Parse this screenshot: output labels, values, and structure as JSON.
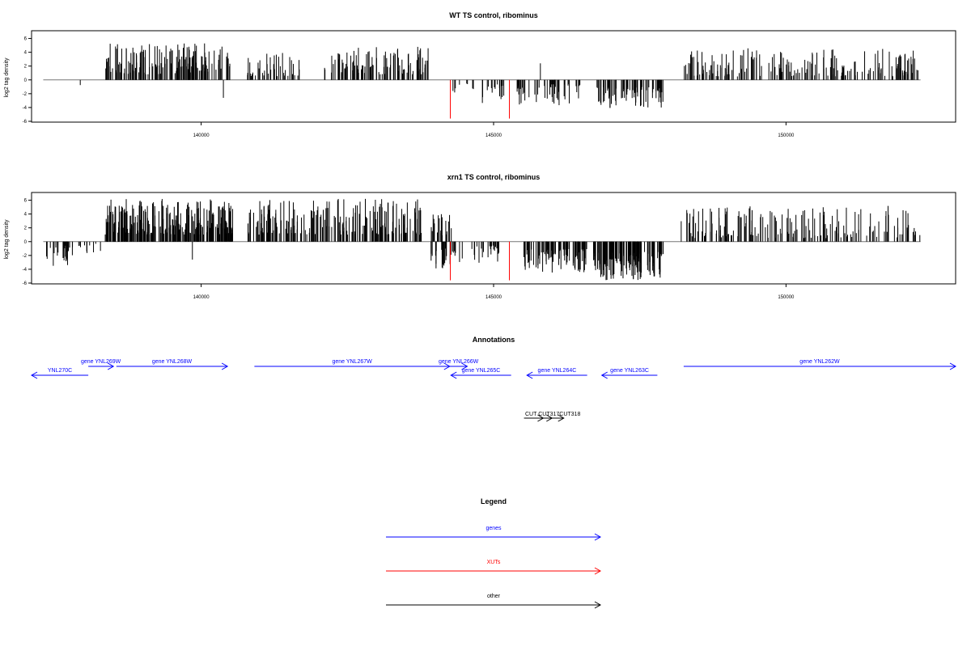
{
  "chart_data": [
    {
      "type": "bar",
      "title": "WT TS control, ribominus",
      "ylabel": "log2 tag density",
      "xlabel": "",
      "xlim": [
        137100,
        152900
      ],
      "ylim": [
        -6,
        6.3
      ],
      "x_ticks": [
        140000,
        145000,
        150000
      ],
      "x_tick_labels": [
        "140000",
        "145000",
        "150000"
      ],
      "y_ticks": [
        6,
        4,
        2,
        0,
        -2,
        -4,
        -6
      ],
      "y_tick_labels": [
        "6",
        "4",
        "2",
        "0",
        "-2",
        "-4",
        "-6"
      ],
      "colors": {
        "bars": "#000000",
        "highlight": "#ff0000"
      },
      "segments": [
        {
          "start": 137900,
          "end": 137950,
          "count": 1,
          "sign": -1,
          "min": 0.7,
          "max": 1.0
        },
        {
          "start": 138350,
          "end": 140500,
          "count": 170,
          "sign": 1,
          "min": 0.8,
          "max": 5.3
        },
        {
          "start": 140780,
          "end": 141750,
          "count": 40,
          "sign": 1,
          "min": 0.5,
          "max": 4.0
        },
        {
          "start": 142100,
          "end": 143900,
          "count": 110,
          "sign": 1,
          "min": 0.8,
          "max": 4.8
        },
        {
          "start": 144300,
          "end": 144350,
          "count": 3,
          "sign": -1,
          "min": 1.2,
          "max": 2.0
        },
        {
          "start": 144350,
          "end": 145200,
          "count": 22,
          "sign": -1,
          "min": 0.5,
          "max": 3.5
        },
        {
          "start": 145400,
          "end": 146600,
          "count": 50,
          "sign": -1,
          "min": 0.6,
          "max": 4.0
        },
        {
          "start": 146750,
          "end": 147900,
          "count": 80,
          "sign": -1,
          "min": 1.0,
          "max": 4.2
        },
        {
          "start": 148250,
          "end": 152300,
          "count": 200,
          "sign": 1,
          "min": 0.5,
          "max": 4.6
        }
      ],
      "spikes": [
        {
          "x": 140380,
          "y": -2.6,
          "color": "#000000"
        },
        {
          "x": 145800,
          "y": 2.4,
          "color": "#000000"
        },
        {
          "x": 144260,
          "y": -5.6,
          "color": "#ff0000"
        },
        {
          "x": 145270,
          "y": -5.6,
          "color": "#ff0000"
        }
      ],
      "baseline": {
        "from": 137300,
        "to": 152300
      }
    },
    {
      "type": "bar",
      "title": "xrn1 TS control, ribominus",
      "ylabel": "log2 tag density",
      "xlabel": "",
      "xlim": [
        137100,
        152900
      ],
      "ylim": [
        -6,
        6.3
      ],
      "x_ticks": [
        140000,
        145000,
        150000
      ],
      "x_tick_labels": [
        "140000",
        "145000",
        "150000"
      ],
      "y_ticks": [
        6,
        4,
        2,
        0,
        -2,
        -4,
        -6
      ],
      "y_tick_labels": [
        "6",
        "4",
        "2",
        "0",
        "-2",
        "-4",
        "-6"
      ],
      "colors": {
        "bars": "#000000",
        "highlight": "#ff0000"
      },
      "segments": [
        {
          "start": 137300,
          "end": 137800,
          "count": 30,
          "sign": -1,
          "min": 0.5,
          "max": 4.0
        },
        {
          "start": 137900,
          "end": 138300,
          "count": 10,
          "sign": -1,
          "min": 0.3,
          "max": 2.0
        },
        {
          "start": 138350,
          "end": 140550,
          "count": 260,
          "sign": 1,
          "min": 1.0,
          "max": 6.2
        },
        {
          "start": 140800,
          "end": 143800,
          "count": 200,
          "sign": 1,
          "min": 1.0,
          "max": 6.2
        },
        {
          "start": 143900,
          "end": 144300,
          "count": 20,
          "sign": 1,
          "min": 0.8,
          "max": 4.0
        },
        {
          "start": 143900,
          "end": 144350,
          "count": 25,
          "sign": -1,
          "min": 1.0,
          "max": 4.0
        },
        {
          "start": 144400,
          "end": 145100,
          "count": 25,
          "sign": -1,
          "min": 0.5,
          "max": 3.6
        },
        {
          "start": 145500,
          "end": 146600,
          "count": 90,
          "sign": -1,
          "min": 1.0,
          "max": 4.6
        },
        {
          "start": 146700,
          "end": 147900,
          "count": 130,
          "sign": -1,
          "min": 1.5,
          "max": 5.6
        },
        {
          "start": 148200,
          "end": 152300,
          "count": 170,
          "sign": 1,
          "min": 0.5,
          "max": 5.2
        }
      ],
      "spikes": [
        {
          "x": 139850,
          "y": -2.6,
          "color": "#000000"
        },
        {
          "x": 144260,
          "y": -5.6,
          "color": "#ff0000"
        },
        {
          "x": 145270,
          "y": -5.6,
          "color": "#ff0000"
        }
      ],
      "baseline": {
        "from": 137300,
        "to": 152300
      }
    }
  ],
  "annotations": {
    "title": "Annotations",
    "genes": [
      {
        "label": "YNL270C",
        "start": 137100,
        "end": 138070,
        "strand": "-",
        "row": 2,
        "color": "#0000ff"
      },
      {
        "label": "gene YNL269W",
        "start": 138070,
        "end": 138500,
        "strand": "+",
        "row": 1,
        "color": "#0000ff"
      },
      {
        "label": "gene YNL268W",
        "start": 138550,
        "end": 140450,
        "strand": "+",
        "row": 1,
        "color": "#0000ff"
      },
      {
        "label": "gene YNL267W",
        "start": 140910,
        "end": 144250,
        "strand": "+",
        "row": 1,
        "color": "#0000ff"
      },
      {
        "label": "gene YNL266W",
        "start": 144250,
        "end": 144550,
        "strand": "+",
        "row": 1,
        "color": "#0000ff"
      },
      {
        "label": "gene YNL265C",
        "start": 144270,
        "end": 145300,
        "strand": "-",
        "row": 2,
        "color": "#0000ff"
      },
      {
        "label": "gene YNL264C",
        "start": 145570,
        "end": 146600,
        "strand": "-",
        "row": 2,
        "color": "#0000ff"
      },
      {
        "label": "gene YNL263C",
        "start": 146850,
        "end": 147800,
        "strand": "-",
        "row": 2,
        "color": "#0000ff"
      },
      {
        "label": "gene YNL262W",
        "start": 148250,
        "end": 152900,
        "strand": "+",
        "row": 1,
        "color": "#0000ff"
      }
    ],
    "others": [
      {
        "label": "CUT 3...",
        "start": 145520,
        "end": 145850,
        "strand": "+",
        "color": "#000000"
      },
      {
        "label": "CUT317",
        "start": 145700,
        "end": 146000,
        "strand": "+",
        "color": "#000000"
      },
      {
        "label": "CUT318",
        "start": 145900,
        "end": 146200,
        "strand": "+",
        "color": "#000000"
      }
    ],
    "other_label_overlap": "CUT CUT317CUT318"
  },
  "legend": {
    "title": "Legend",
    "items": [
      {
        "label": "genes",
        "color": "#0000ff"
      },
      {
        "label": "XUTs",
        "color": "#ff0000"
      },
      {
        "label": "other",
        "color": "#000000"
      }
    ]
  }
}
